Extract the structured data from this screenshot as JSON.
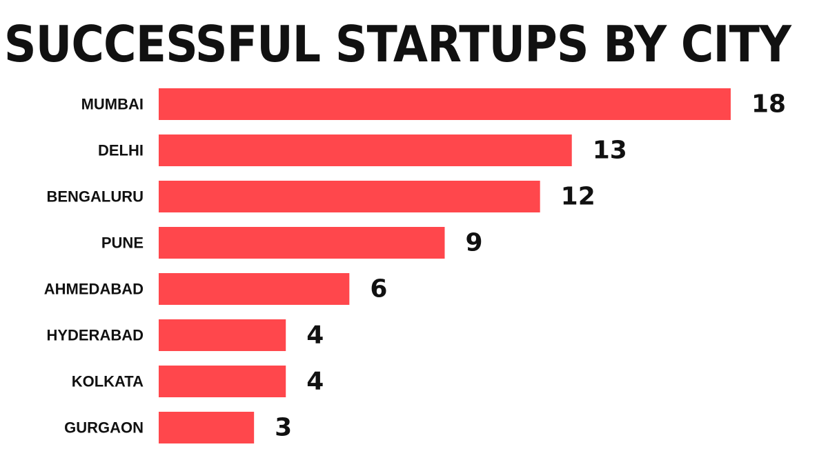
{
  "chart_data": {
    "type": "bar",
    "orientation": "horizontal",
    "title": "SUCCESSFUL STARTUPS BY CITY",
    "categories": [
      "MUMBAI",
      "DELHI",
      "BENGALURU",
      "PUNE",
      "AHMEDABAD",
      "HYDERABAD",
      "KOLKATA",
      "GURGAON"
    ],
    "values": [
      18,
      13,
      12,
      9,
      6,
      4,
      4,
      3
    ],
    "data_labels": [
      "18",
      "13",
      "12",
      "9",
      "6",
      "4",
      "4",
      "3"
    ],
    "xlim": [
      0,
      18
    ],
    "grid": false,
    "legend": "none",
    "bar_color": "#ff474c"
  }
}
